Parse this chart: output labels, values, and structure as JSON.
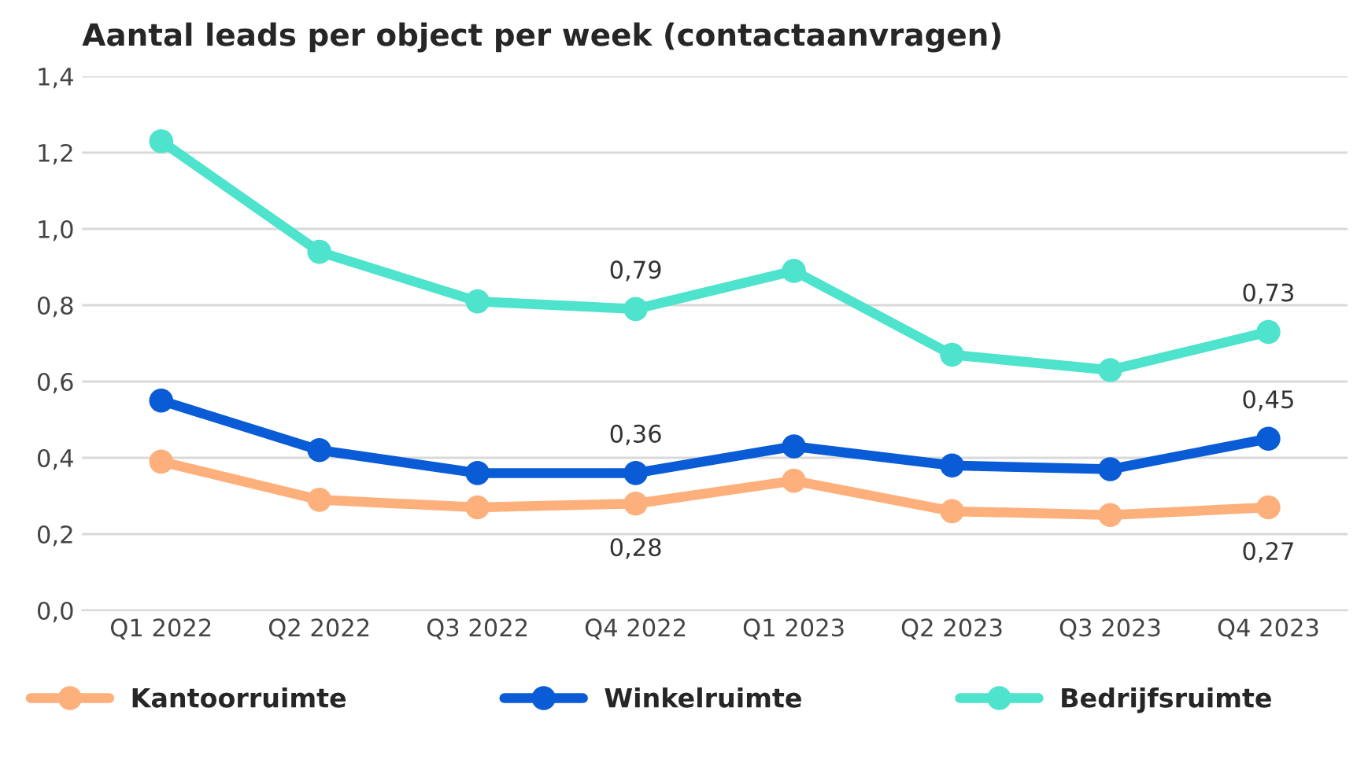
{
  "chart_data": {
    "type": "line",
    "title": "Aantal leads per object per week (contactaanvragen)",
    "categories": [
      "Q1 2022",
      "Q2 2022",
      "Q3 2022",
      "Q4 2022",
      "Q1 2023",
      "Q2 2023",
      "Q3 2023",
      "Q4 2023"
    ],
    "series": [
      {
        "name": "Kantoorruimte",
        "color": "#fdb07c",
        "values": [
          0.39,
          0.29,
          0.27,
          0.28,
          0.34,
          0.26,
          0.25,
          0.27
        ],
        "value_labels": [
          null,
          null,
          null,
          "0,28",
          null,
          null,
          null,
          "0,27"
        ]
      },
      {
        "name": "Winkelruimte",
        "color": "#0a5bd6",
        "values": [
          0.55,
          0.42,
          0.36,
          0.36,
          0.43,
          0.38,
          0.37,
          0.45
        ],
        "value_labels": [
          null,
          null,
          null,
          "0,36",
          null,
          null,
          null,
          "0,45"
        ]
      },
      {
        "name": "Bedrijfsruimte",
        "color": "#4de3cc",
        "values": [
          1.23,
          0.94,
          0.81,
          0.79,
          0.89,
          0.67,
          0.63,
          0.73
        ],
        "value_labels": [
          null,
          null,
          null,
          "0,79",
          null,
          null,
          null,
          "0,73"
        ]
      }
    ],
    "ylim": [
      0,
      1.4
    ],
    "yticks": [
      {
        "value": 0,
        "label": "0,0"
      },
      {
        "value": 0.2,
        "label": "0,2"
      },
      {
        "value": 0.4,
        "label": "0,4"
      },
      {
        "value": 0.6,
        "label": "0,6"
      },
      {
        "value": 0.8,
        "label": "0,8"
      },
      {
        "value": 1.0,
        "label": "1,0"
      },
      {
        "value": 1.2,
        "label": "1,2"
      },
      {
        "value": 1.4,
        "label": "1,4"
      }
    ],
    "grid": "y",
    "legend": "bottom",
    "marker": "circle",
    "line_style": "solid"
  }
}
